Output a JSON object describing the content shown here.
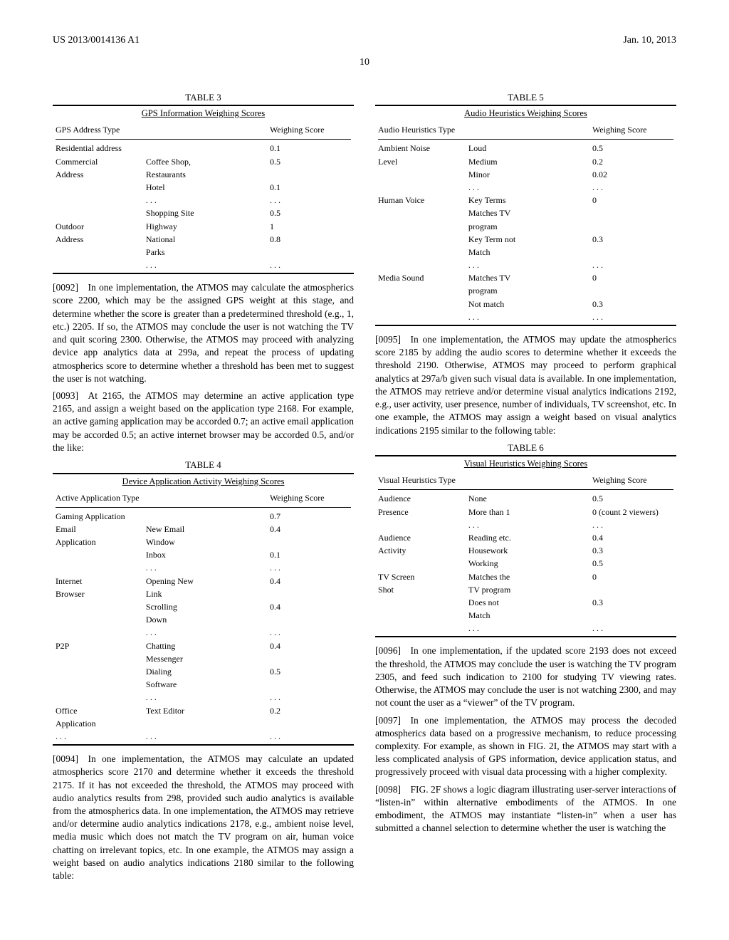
{
  "header": {
    "left": "US 2013/0014136 A1",
    "right": "Jan. 10, 2013",
    "pagenum": "10"
  },
  "tables": {
    "t3": {
      "caption": "TABLE 3",
      "title": "GPS Information Weighing Scores",
      "col1": "GPS Address Type",
      "col2": "Weighing Score",
      "rows": [
        [
          "Residential address",
          "",
          "0.1"
        ],
        [
          "Commercial",
          "Coffee Shop,",
          "0.5"
        ],
        [
          "Address",
          "Restaurants",
          ""
        ],
        [
          "",
          "Hotel",
          "0.1"
        ],
        [
          "",
          ". . .",
          ". . ."
        ],
        [
          "",
          "Shopping Site",
          "0.5"
        ],
        [
          "Outdoor",
          "Highway",
          "1"
        ],
        [
          "Address",
          "National",
          "0.8"
        ],
        [
          "",
          "Parks",
          ""
        ],
        [
          "",
          ". . .",
          ". . ."
        ]
      ]
    },
    "t4": {
      "caption": "TABLE 4",
      "title": "Device Application Activity Weighing Scores",
      "col1": "Active Application Type",
      "col2": "Weighing Score",
      "rows": [
        [
          "Gaming Application",
          "",
          "0.7"
        ],
        [
          "Email",
          "New Email",
          "0.4"
        ],
        [
          "Application",
          "Window",
          ""
        ],
        [
          "",
          "Inbox",
          "0.1"
        ],
        [
          "",
          ". . .",
          ". . ."
        ],
        [
          "Internet",
          "Opening New",
          "0.4"
        ],
        [
          "Browser",
          "Link",
          ""
        ],
        [
          "",
          "Scrolling",
          "0.4"
        ],
        [
          "",
          "Down",
          ""
        ],
        [
          "",
          ". . .",
          ". . ."
        ],
        [
          "P2P",
          "Chatting",
          "0.4"
        ],
        [
          "",
          "Messenger",
          ""
        ],
        [
          "",
          "Dialing",
          "0.5"
        ],
        [
          "",
          "Software",
          ""
        ],
        [
          "",
          ". . .",
          ". . ."
        ],
        [
          "Office",
          "Text Editor",
          "0.2"
        ],
        [
          "Application",
          "",
          ""
        ],
        [
          ". . .",
          ". . .",
          ". . ."
        ]
      ]
    },
    "t5": {
      "caption": "TABLE 5",
      "title": "Audio Heuristics Weighing Scores",
      "col1": "Audio Heuristics Type",
      "col2": "Weighing Score",
      "rows": [
        [
          "Ambient Noise",
          "Loud",
          "0.5"
        ],
        [
          "Level",
          "Medium",
          "0.2"
        ],
        [
          "",
          "Minor",
          "0.02"
        ],
        [
          "",
          ". . .",
          ". . ."
        ],
        [
          "Human Voice",
          "Key Terms",
          "0"
        ],
        [
          "",
          "Matches TV",
          ""
        ],
        [
          "",
          "program",
          ""
        ],
        [
          "",
          "Key Term not",
          "0.3"
        ],
        [
          "",
          "Match",
          ""
        ],
        [
          "",
          ". . .",
          ". . ."
        ],
        [
          "Media Sound",
          "Matches TV",
          "0"
        ],
        [
          "",
          "program",
          ""
        ],
        [
          "",
          "Not match",
          "0.3"
        ],
        [
          "",
          ". . .",
          ". . ."
        ]
      ]
    },
    "t6": {
      "caption": "TABLE 6",
      "title": "Visual Heuristics Weighing Scores",
      "col1": "Visual Heuristics Type",
      "col2": "Weighing Score",
      "rows": [
        [
          "Audience",
          "None",
          "0.5"
        ],
        [
          "Presence",
          "More than 1",
          "0 (count 2 viewers)"
        ],
        [
          "",
          ". . .",
          ". . ."
        ],
        [
          "Audience",
          "Reading etc.",
          "0.4"
        ],
        [
          "Activity",
          "Housework",
          "0.3"
        ],
        [
          "",
          "Working",
          "0.5"
        ],
        [
          "TV Screen",
          "Matches the",
          "0"
        ],
        [
          "Shot",
          "TV program",
          ""
        ],
        [
          "",
          "Does not",
          "0.3"
        ],
        [
          "",
          "Match",
          ""
        ],
        [
          "",
          ". . .",
          ". . ."
        ]
      ]
    }
  },
  "paragraphs": {
    "p92": "[0092] In one implementation, the ATMOS may calculate the atmospherics score 2200, which may be the assigned GPS weight at this stage, and determine whether the score is greater than a predetermined threshold (e.g., 1, etc.) 2205. If so, the ATMOS may conclude the user is not watching the TV and quit scoring 2300. Otherwise, the ATMOS may proceed with analyzing device app analytics data at 299a, and repeat the process of updating atmospherics score to determine whether a threshold has been met to suggest the user is not watching.",
    "p93": "[0093] At 2165, the ATMOS may determine an active application type 2165, and assign a weight based on the application type 2168. For example, an active gaming application may be accorded 0.7; an active email application may be accorded 0.5; an active internet browser may be accorded 0.5, and/or the like:",
    "p94": "[0094] In one implementation, the ATMOS may calculate an updated atmospherics score 2170 and determine whether it exceeds the threshold 2175. If it has not exceeded the threshold, the ATMOS may proceed with audio analytics results from 298, provided such audio analytics is available from the atmospherics data. In one implementation, the ATMOS may retrieve and/or determine audio analytics indications 2178, e.g., ambient noise level, media music which does not match the TV program on air, human voice chatting on irrelevant topics, etc. In one example, the ATMOS may assign a weight based on audio analytics indications 2180 similar to the following table:",
    "p95": "[0095] In one implementation, the ATMOS may update the atmospherics score 2185 by adding the audio scores to determine whether it exceeds the threshold 2190. Otherwise, ATMOS may proceed to perform graphical analytics at 297a/b given such visual data is available. In one implementation, the ATMOS may retrieve and/or determine visual analytics indications 2192, e.g., user activity, user presence, number of individuals, TV screenshot, etc. In one example, the ATMOS may assign a weight based on visual analytics indications 2195 similar to the following table:",
    "p96": "[0096] In one implementation, if the updated score 2193 does not exceed the threshold, the ATMOS may conclude the user is watching the TV program 2305, and feed such indication to 2100 for studying TV viewing rates. Otherwise, the ATMOS may conclude the user is not watching 2300, and may not count the user as a “viewer” of the TV program.",
    "p97": "[0097] In one implementation, the ATMOS may process the decoded atmospherics data based on a progressive mechanism, to reduce processing complexity. For example, as shown in FIG. 2I, the ATMOS may start with a less complicated analysis of GPS information, device application status, and progressively proceed with visual data processing with a higher complexity.",
    "p98": "[0098] FIG. 2F shows a logic diagram illustrating user-server interactions of “listen-in” within alternative embodiments of the ATMOS. In one embodiment, the ATMOS may instantiate “listen-in” when a user has submitted a channel selection to determine whether the user is watching the"
  }
}
